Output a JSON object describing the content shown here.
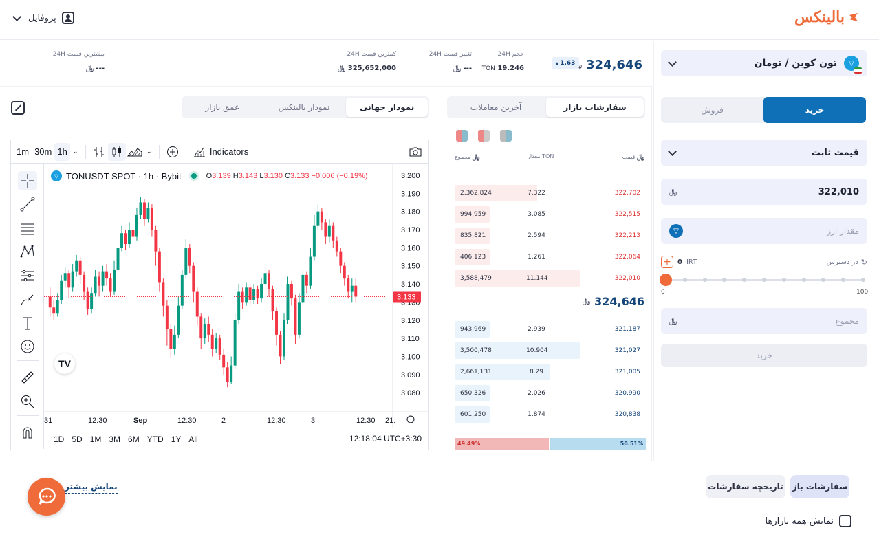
{
  "header": {
    "logo_text": "بالینکس",
    "profile_label": "پروفایل"
  },
  "trade": {
    "market_label": "تون کوین / تومان",
    "buy_tab": "خرید",
    "sell_tab": "فروش",
    "order_type": "قیمت ثابت",
    "price_value": "322,010",
    "amount_placeholder": "مقدار ارز",
    "available_label": "در دسترس",
    "available_value": "0",
    "available_unit": "IRT",
    "slider_min": "0",
    "slider_max": "100",
    "slider_value": 0,
    "total_placeholder": "مجموع",
    "submit_label": "خرید"
  },
  "price_row": {
    "last_price": "324,646",
    "change_pct": "1.63",
    "volume_label": "حجم 24H",
    "volume_value": "19.246",
    "volume_unit": "TON",
    "change_label": "تغییر قیمت 24H",
    "change_value": "---",
    "low_label": "کمترین قیمت 24H",
    "low_value": "325,652,000",
    "high_label": "بیشترین قیمت 24H",
    "high_value": "---"
  },
  "orderbook": {
    "tab_market_orders": "سفارشات بازار",
    "tab_last_trades": "آخرین معاملات",
    "col_price": "قیمت",
    "col_amount": "مقدار TON",
    "col_total": "مجموع",
    "asks": [
      {
        "total": "2,362,824",
        "amount": "7.322",
        "price": "322,702",
        "depth": 0.66
      },
      {
        "total": "994,959",
        "amount": "3.085",
        "price": "322,515",
        "depth": 0.28
      },
      {
        "total": "835,821",
        "amount": "2.594",
        "price": "322,213",
        "depth": 0.23
      },
      {
        "total": "406,123",
        "amount": "1.261",
        "price": "322,064",
        "depth": 0.12
      },
      {
        "total": "3,588,479",
        "amount": "11.144",
        "price": "322,010",
        "depth": 1.0
      }
    ],
    "mid_price": "324,646",
    "bids": [
      {
        "total": "943,969",
        "amount": "2.939",
        "price": "321,187",
        "depth": 0.27
      },
      {
        "total": "3,500,478",
        "amount": "10.904",
        "price": "321,027",
        "depth": 1.0
      },
      {
        "total": "2,661,131",
        "amount": "8.29",
        "price": "321,005",
        "depth": 0.76
      },
      {
        "total": "650,326",
        "amount": "2.026",
        "price": "320,990",
        "depth": 0.19
      },
      {
        "total": "601,250",
        "amount": "1.874",
        "price": "320,838",
        "depth": 0.17
      }
    ],
    "sell_ratio": "49.49%",
    "buy_ratio": "50.51%"
  },
  "chart_tabs": {
    "global": "نمودار جهانی",
    "balinex": "نمودار بالینکس",
    "depth": "عمق بازار"
  },
  "tv": {
    "tf_1m": "1m",
    "tf_30m": "30m",
    "tf_1h": "1h",
    "indicators": "Indicators",
    "symbol": "TONUSDT SPOT · 1h · Bybit",
    "o_label": "O",
    "o_value": "3.139",
    "h_label": "H",
    "h_value": "3.143",
    "l_label": "L",
    "l_value": "3.130",
    "c_label": "C",
    "c_value": "3.133",
    "chg": "−0.006 (−0.19%)",
    "ranges": [
      "1D",
      "5D",
      "1M",
      "3M",
      "6M",
      "YTD",
      "1Y",
      "All"
    ],
    "clock": "12:18:04 UTC+3:30",
    "colors": {
      "up": "#089981",
      "down": "#f23645"
    }
  },
  "chart_data": {
    "type": "candlestick",
    "title": "TONUSDT SPOT · 1h · Bybit",
    "x_ticks": [
      "31",
      "12:30",
      "Sep",
      "12:30",
      "2",
      "12:30",
      "3",
      "12:30",
      "21:"
    ],
    "y_ticks": [
      "3.200",
      "3.190",
      "3.180",
      "3.170",
      "3.160",
      "3.150",
      "3.140",
      "3.130",
      "3.120",
      "3.110",
      "3.100",
      "3.090",
      "3.080"
    ],
    "ylim": [
      3.074,
      3.203
    ],
    "last_price_label": "3.133",
    "last_price": 3.133,
    "candles": [
      [
        3.133,
        3.127,
        3.138,
        3.122
      ],
      [
        3.127,
        3.124,
        3.131,
        3.12
      ],
      [
        3.124,
        3.131,
        3.135,
        3.122
      ],
      [
        3.131,
        3.142,
        3.145,
        3.129
      ],
      [
        3.142,
        3.146,
        3.149,
        3.138
      ],
      [
        3.146,
        3.138,
        3.148,
        3.132
      ],
      [
        3.138,
        3.147,
        3.151,
        3.136
      ],
      [
        3.147,
        3.153,
        3.156,
        3.144
      ],
      [
        3.153,
        3.145,
        3.155,
        3.14
      ],
      [
        3.145,
        3.136,
        3.147,
        3.131
      ],
      [
        3.136,
        3.126,
        3.138,
        3.123
      ],
      [
        3.126,
        3.135,
        3.138,
        3.124
      ],
      [
        3.135,
        3.144,
        3.148,
        3.133
      ],
      [
        3.144,
        3.139,
        3.147,
        3.133
      ],
      [
        3.139,
        3.147,
        3.15,
        3.136
      ],
      [
        3.147,
        3.143,
        3.151,
        3.139
      ],
      [
        3.143,
        3.136,
        3.146,
        3.133
      ],
      [
        3.136,
        3.148,
        3.153,
        3.134
      ],
      [
        3.148,
        3.16,
        3.164,
        3.146
      ],
      [
        3.16,
        3.168,
        3.172,
        3.158
      ],
      [
        3.168,
        3.162,
        3.17,
        3.159
      ],
      [
        3.162,
        3.17,
        3.174,
        3.16
      ],
      [
        3.17,
        3.166,
        3.173,
        3.163
      ],
      [
        3.166,
        3.178,
        3.182,
        3.164
      ],
      [
        3.178,
        3.185,
        3.188,
        3.176
      ],
      [
        3.185,
        3.176,
        3.187,
        3.172
      ],
      [
        3.176,
        3.182,
        3.185,
        3.174
      ],
      [
        3.182,
        3.17,
        3.184,
        3.166
      ],
      [
        3.17,
        3.158,
        3.172,
        3.15
      ],
      [
        3.158,
        3.141,
        3.16,
        3.136
      ],
      [
        3.141,
        3.128,
        3.143,
        3.122
      ],
      [
        3.128,
        3.115,
        3.131,
        3.106
      ],
      [
        3.115,
        3.104,
        3.118,
        3.099
      ],
      [
        3.104,
        3.112,
        3.117,
        3.101
      ],
      [
        3.112,
        3.128,
        3.133,
        3.11
      ],
      [
        3.128,
        3.145,
        3.148,
        3.126
      ],
      [
        3.145,
        3.16,
        3.165,
        3.143
      ],
      [
        3.16,
        3.15,
        3.162,
        3.146
      ],
      [
        3.15,
        3.136,
        3.152,
        3.13
      ],
      [
        3.136,
        3.122,
        3.138,
        3.117
      ],
      [
        3.122,
        3.11,
        3.124,
        3.104
      ],
      [
        3.11,
        3.118,
        3.121,
        3.107
      ],
      [
        3.118,
        3.112,
        3.122,
        3.108
      ],
      [
        3.112,
        3.104,
        3.115,
        3.1
      ],
      [
        3.104,
        3.11,
        3.113,
        3.102
      ],
      [
        3.11,
        3.101,
        3.112,
        3.098
      ],
      [
        3.101,
        3.094,
        3.104,
        3.09
      ],
      [
        3.094,
        3.086,
        3.097,
        3.083
      ],
      [
        3.086,
        3.095,
        3.1,
        3.085
      ],
      [
        3.095,
        3.12,
        3.124,
        3.093
      ],
      [
        3.12,
        3.136,
        3.14,
        3.118
      ],
      [
        3.136,
        3.13,
        3.138,
        3.126
      ],
      [
        3.13,
        3.138,
        3.141,
        3.128
      ],
      [
        3.138,
        3.131,
        3.14,
        3.128
      ],
      [
        3.131,
        3.137,
        3.14,
        3.129
      ],
      [
        3.137,
        3.132,
        3.139,
        3.129
      ],
      [
        3.132,
        3.14,
        3.143,
        3.13
      ],
      [
        3.14,
        3.146,
        3.15,
        3.138
      ],
      [
        3.146,
        3.137,
        3.148,
        3.133
      ],
      [
        3.137,
        3.125,
        3.139,
        3.12
      ],
      [
        3.125,
        3.112,
        3.127,
        3.106
      ],
      [
        3.112,
        3.1,
        3.114,
        3.096
      ],
      [
        3.1,
        3.12,
        3.124,
        3.098
      ],
      [
        3.12,
        3.14,
        3.144,
        3.118
      ],
      [
        3.14,
        3.132,
        3.142,
        3.128
      ],
      [
        3.132,
        3.112,
        3.134,
        3.107
      ],
      [
        3.112,
        3.13,
        3.135,
        3.11
      ],
      [
        3.13,
        3.145,
        3.148,
        3.128
      ],
      [
        3.145,
        3.139,
        3.147,
        3.135
      ],
      [
        3.139,
        3.155,
        3.16,
        3.137
      ],
      [
        3.155,
        3.172,
        3.178,
        3.153
      ],
      [
        3.172,
        3.18,
        3.184,
        3.17
      ],
      [
        3.18,
        3.174,
        3.182,
        3.17
      ],
      [
        3.174,
        3.166,
        3.176,
        3.162
      ],
      [
        3.166,
        3.172,
        3.176,
        3.163
      ],
      [
        3.172,
        3.164,
        3.174,
        3.16
      ],
      [
        3.164,
        3.158,
        3.166,
        3.155
      ],
      [
        3.158,
        3.15,
        3.16,
        3.146
      ],
      [
        3.15,
        3.143,
        3.152,
        3.139
      ],
      [
        3.143,
        3.136,
        3.145,
        3.132
      ],
      [
        3.136,
        3.139,
        3.143,
        3.13
      ],
      [
        3.139,
        3.133,
        3.143,
        3.13
      ]
    ]
  },
  "bottom": {
    "tab_open_orders": "سفارشات باز",
    "tab_history": "تاریخچه سفارشات",
    "show_more": "نمایش بیشتر",
    "all_markets": "نمایش همه بازارها"
  },
  "toman_glyph": "تومان"
}
